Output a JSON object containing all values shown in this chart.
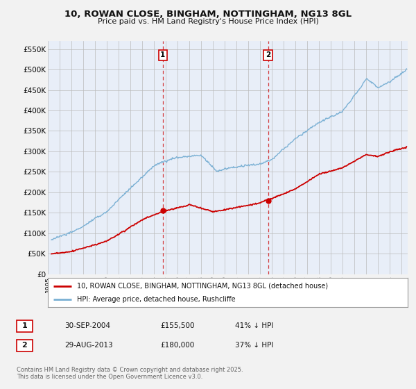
{
  "title": "10, ROWAN CLOSE, BINGHAM, NOTTINGHAM, NG13 8GL",
  "subtitle": "Price paid vs. HM Land Registry's House Price Index (HPI)",
  "ylabel_ticks": [
    "£0",
    "£50K",
    "£100K",
    "£150K",
    "£200K",
    "£250K",
    "£300K",
    "£350K",
    "£400K",
    "£450K",
    "£500K",
    "£550K"
  ],
  "ytick_values": [
    0,
    50000,
    100000,
    150000,
    200000,
    250000,
    300000,
    350000,
    400000,
    450000,
    500000,
    550000
  ],
  "ylim": [
    0,
    570000
  ],
  "xlim_start": 1995.3,
  "xlim_end": 2025.5,
  "marker1_x": 2004.75,
  "marker1_y": 155500,
  "marker2_x": 2013.66,
  "marker2_y": 180000,
  "legend_line1": "10, ROWAN CLOSE, BINGHAM, NOTTINGHAM, NG13 8GL (detached house)",
  "legend_line2": "HPI: Average price, detached house, Rushcliffe",
  "table_row1": [
    "1",
    "30-SEP-2004",
    "£155,500",
    "41% ↓ HPI"
  ],
  "table_row2": [
    "2",
    "29-AUG-2013",
    "£180,000",
    "37% ↓ HPI"
  ],
  "footnote": "Contains HM Land Registry data © Crown copyright and database right 2025.\nThis data is licensed under the Open Government Licence v3.0.",
  "color_red": "#cc0000",
  "color_blue": "#7ab0d4",
  "background_color": "#e8eef8",
  "fig_bg": "#f2f2f2"
}
